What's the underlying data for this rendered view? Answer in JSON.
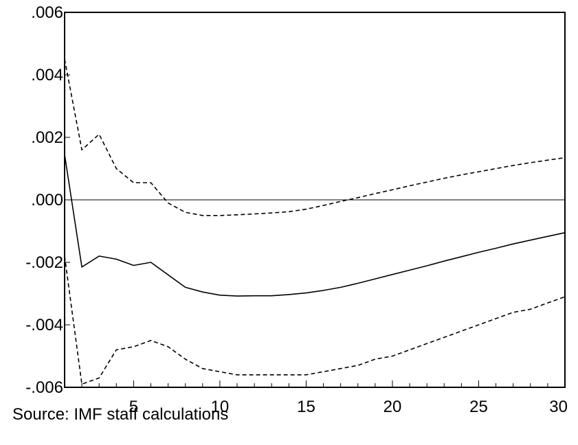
{
  "chart_data": {
    "type": "line",
    "title": "",
    "xlabel": "",
    "ylabel": "",
    "xlim": [
      1,
      30
    ],
    "ylim": [
      -0.006,
      0.006
    ],
    "x_ticks": [
      5,
      10,
      15,
      20,
      25,
      30
    ],
    "x_tick_labels": [
      "5",
      "10",
      "15",
      "20",
      "25",
      "30"
    ],
    "y_ticks": [
      0.006,
      0.004,
      0.002,
      0.0,
      -0.002,
      -0.004,
      -0.006
    ],
    "y_tick_labels": [
      ".006",
      ".004",
      ".002",
      ".000",
      "-.002",
      "-.004",
      "-.006"
    ],
    "zero_line": true,
    "grid": false,
    "legend": "none",
    "x": [
      1,
      2,
      3,
      4,
      5,
      6,
      7,
      8,
      9,
      10,
      11,
      12,
      13,
      14,
      15,
      16,
      17,
      18,
      19,
      20,
      21,
      22,
      23,
      24,
      25,
      26,
      27,
      28,
      29,
      30
    ],
    "series": [
      {
        "style": "solid",
        "values": [
          0.00145,
          -0.00215,
          -0.0018,
          -0.0019,
          -0.0021,
          -0.002,
          -0.0024,
          -0.0028,
          -0.00295,
          -0.00305,
          -0.00308,
          -0.00307,
          -0.00307,
          -0.00303,
          -0.00298,
          -0.0029,
          -0.0028,
          -0.00267,
          -0.00253,
          -0.00239,
          -0.00225,
          -0.00211,
          -0.00196,
          -0.00182,
          -0.00168,
          -0.00155,
          -0.00141,
          -0.00129,
          -0.00117,
          -0.00105
        ]
      },
      {
        "style": "dashed",
        "values": [
          0.0045,
          0.0016,
          0.0021,
          0.001,
          0.00055,
          0.00055,
          -0.0001,
          -0.0004,
          -0.0005,
          -0.0005,
          -0.00048,
          -0.00045,
          -0.00042,
          -0.00038,
          -0.0003,
          -0.00018,
          -5e-05,
          7e-05,
          0.0002,
          0.00032,
          0.00045,
          0.00057,
          0.00069,
          0.0008,
          0.0009,
          0.001,
          0.0011,
          0.00119,
          0.00127,
          0.00135
        ]
      },
      {
        "style": "dashed",
        "values": [
          -0.0018,
          -0.0059,
          -0.0057,
          -0.0048,
          -0.0047,
          -0.0045,
          -0.0047,
          -0.0051,
          -0.0054,
          -0.0055,
          -0.0056,
          -0.0056,
          -0.0056,
          -0.0056,
          -0.0056,
          -0.0055,
          -0.0054,
          -0.0053,
          -0.0051,
          -0.005,
          -0.0048,
          -0.0046,
          -0.0044,
          -0.0042,
          -0.004,
          -0.0038,
          -0.0036,
          -0.0035,
          -0.0033,
          -0.0031
        ]
      }
    ]
  },
  "source": "Source: IMF staff calculations"
}
